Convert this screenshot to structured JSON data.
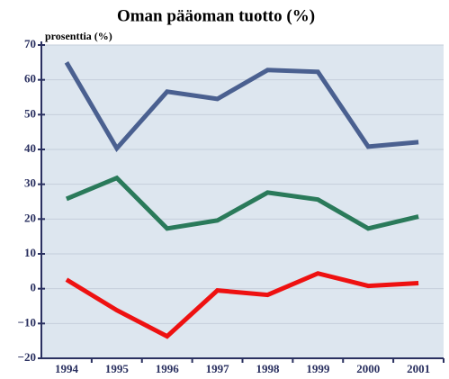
{
  "chart_data": {
    "type": "line",
    "title": "Oman pääoman tuotto (%)",
    "ylabel": "prosenttia (%)",
    "categories": [
      "1994",
      "1995",
      "1996",
      "1997",
      "1998",
      "1999",
      "2000",
      "2001"
    ],
    "series": [
      {
        "color": "#4a6090",
        "values": [
          65,
          40.3,
          56.6,
          54.5,
          62.8,
          62.3,
          40.8,
          42.1
        ]
      },
      {
        "color": "#2a7a5a",
        "values": [
          25.8,
          31.8,
          17.3,
          19.6,
          27.6,
          25.6,
          17.3,
          20.7
        ]
      },
      {
        "color": "#ee1111",
        "values": [
          2.6,
          -6.2,
          -13.7,
          -0.5,
          -1.8,
          4.4,
          0.8,
          1.6
        ]
      }
    ],
    "ylim": [
      -20,
      70
    ],
    "yticks": [
      {
        "value": -20,
        "label": "−20"
      },
      {
        "value": -10,
        "label": "−10"
      },
      0,
      10,
      20,
      30,
      40,
      50,
      60,
      70
    ],
    "grid": true
  }
}
